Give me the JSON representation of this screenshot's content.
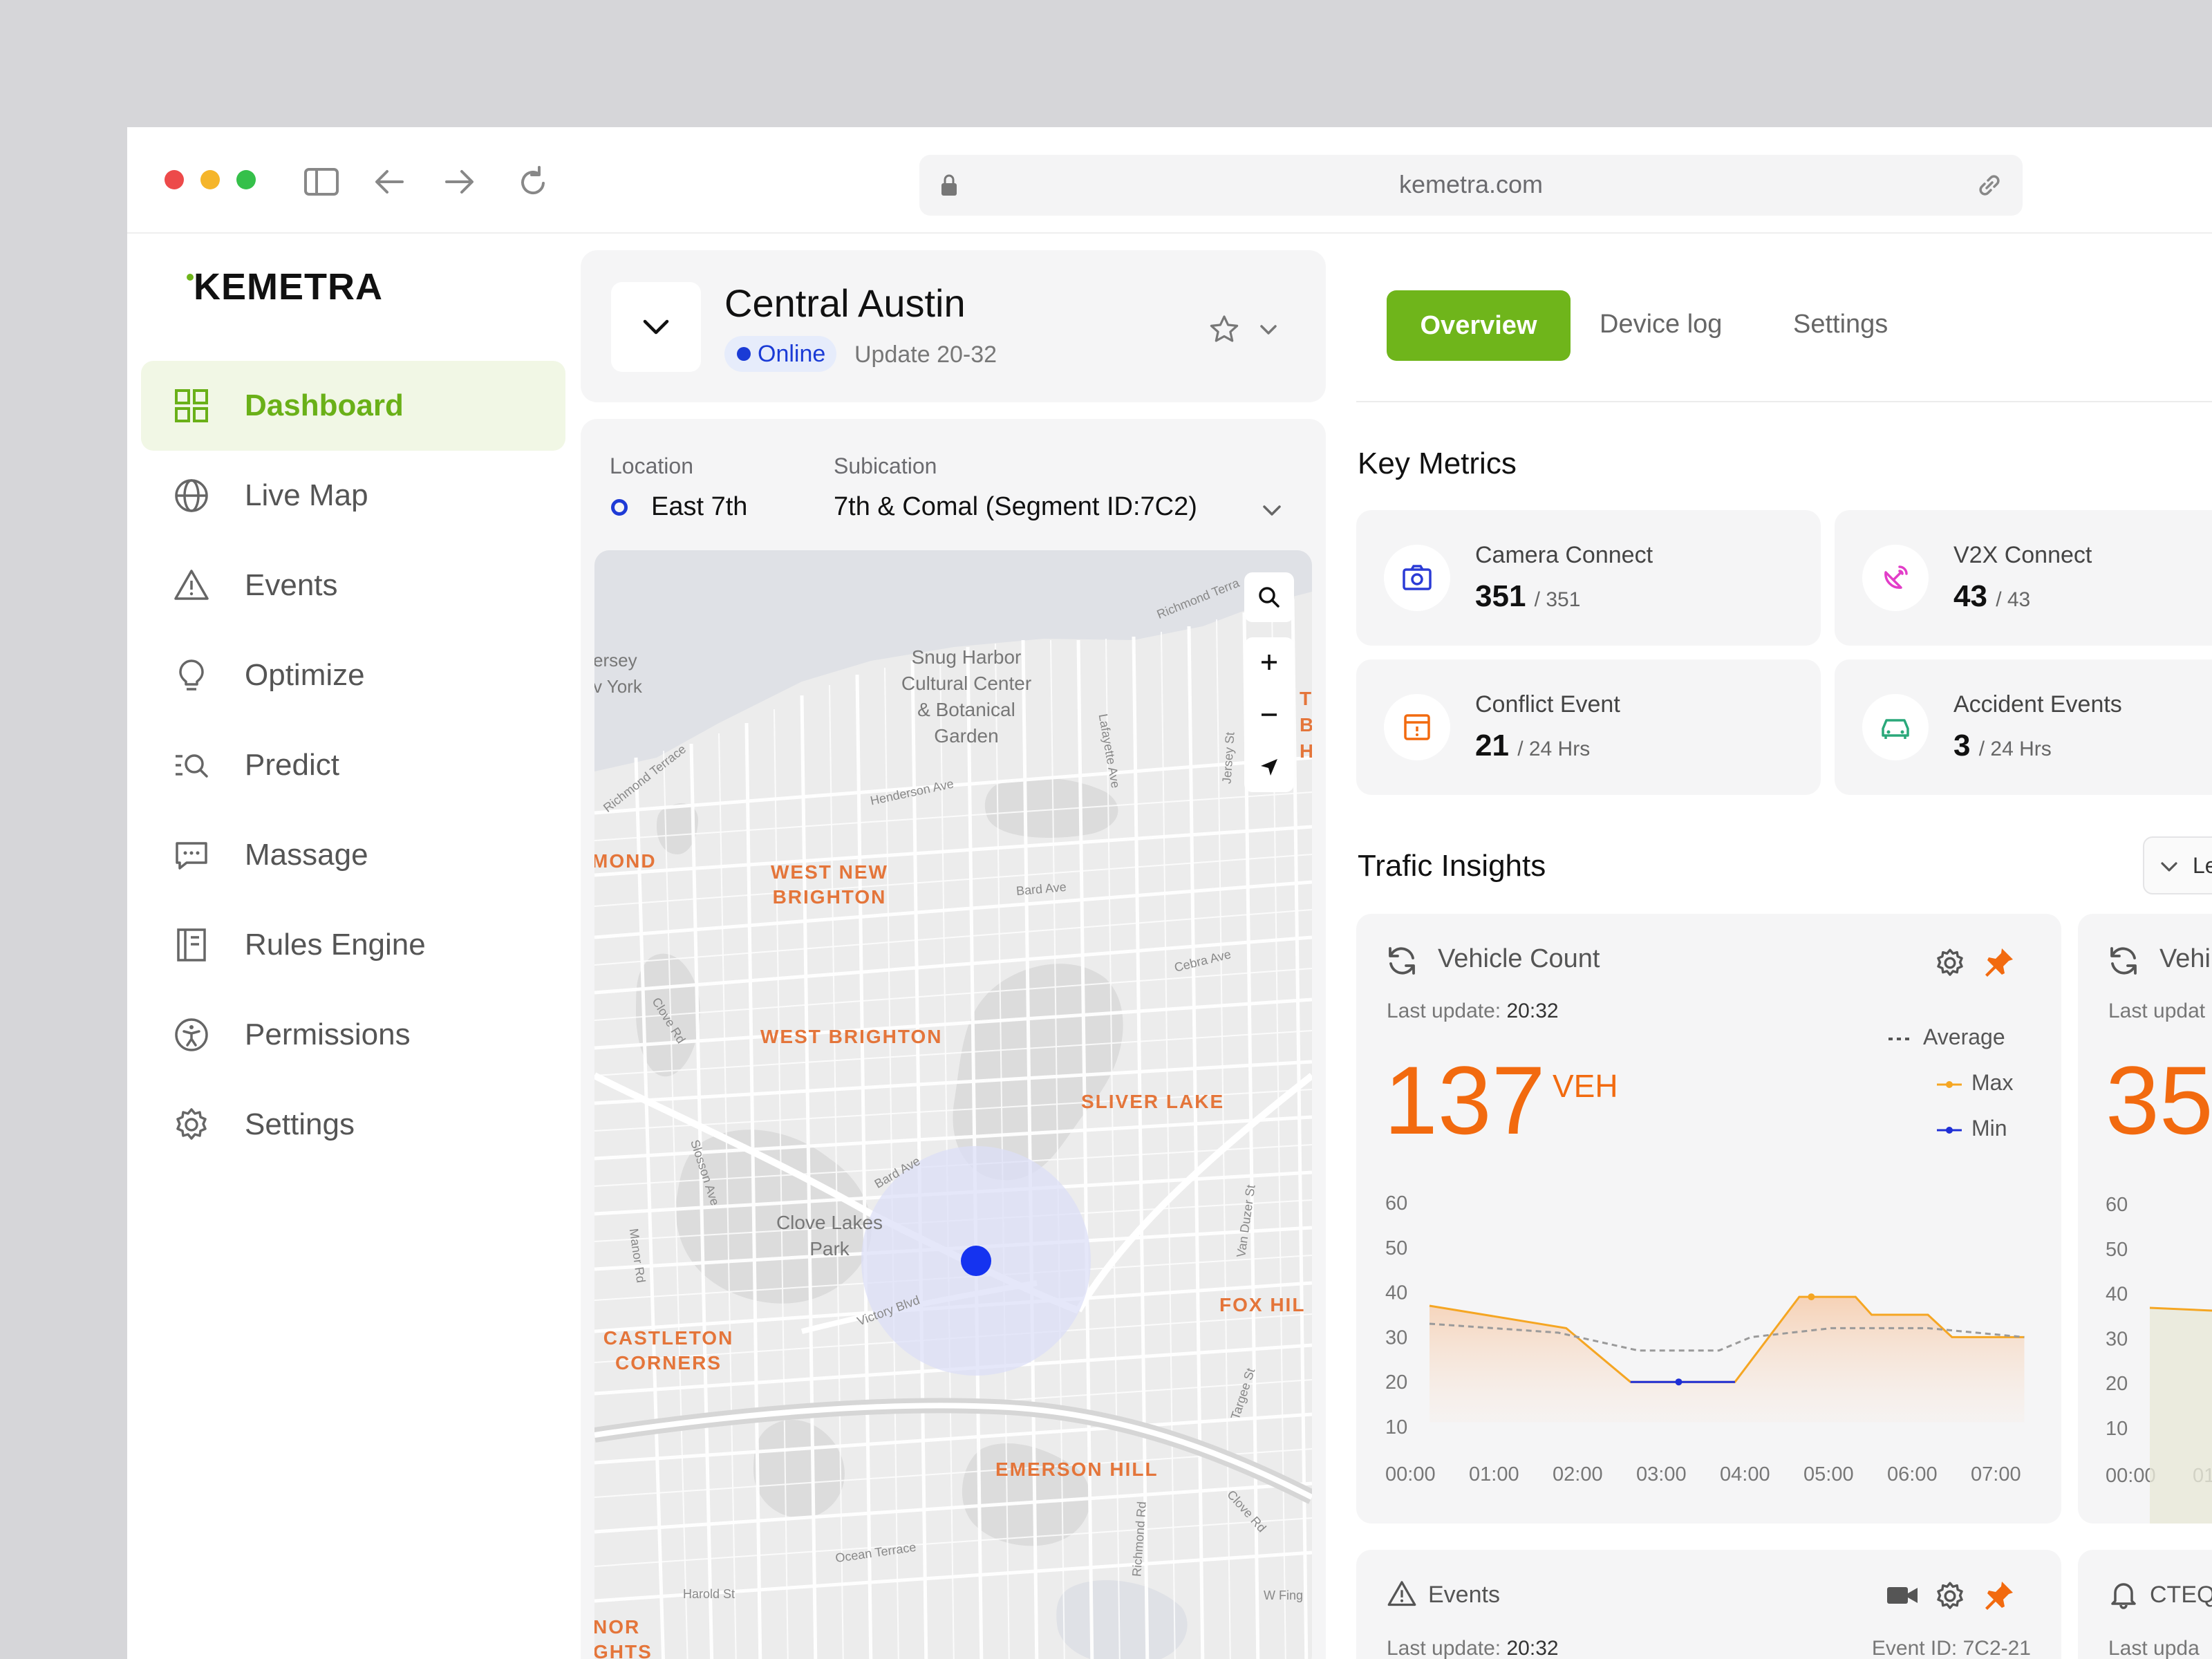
{
  "browser": {
    "url": "kemetra.com"
  },
  "logo": "KEMETRA",
  "nav": [
    {
      "label": "Dashboard",
      "icon": "grid-icon",
      "active": true
    },
    {
      "label": "Live Map",
      "icon": "globe-icon"
    },
    {
      "label": "Events",
      "icon": "warning-icon"
    },
    {
      "label": "Optimize",
      "icon": "lightbulb-icon"
    },
    {
      "label": "Predict",
      "icon": "search-list-icon"
    },
    {
      "label": "Massage",
      "icon": "chat-icon"
    },
    {
      "label": "Rules Engine",
      "icon": "book-icon"
    },
    {
      "label": "Permissions",
      "icon": "accessibility-icon"
    },
    {
      "label": "Settings",
      "icon": "gear-icon"
    }
  ],
  "site": {
    "title": "Central Austin",
    "status": "Online",
    "update": "Update 20-32"
  },
  "location": {
    "location_label": "Location",
    "location_value": "East 7th",
    "subication_label": "Subication",
    "subication_value": "7th & Comal (Segment ID:7C2)"
  },
  "map_labels": {
    "snug": [
      "Snug Harbor",
      "Cultural Center",
      "& Botanical",
      "Garden"
    ],
    "west_new_brighton": [
      "WEST NEW",
      "BRIGHTON"
    ],
    "west_brighton": "WEST BRIGHTON",
    "sliver_lake": "SLIVER LAKE",
    "clove_lakes": [
      "Clove Lakes",
      "Park"
    ],
    "castleton": [
      "CASTLETON",
      "CORNERS"
    ],
    "fox_hill": "FOX HIL",
    "emerson_hill": "EMERSON HILL",
    "mond": "MOND",
    "jersey": [
      "ersey",
      "v York"
    ],
    "nor": [
      "NOR",
      "GHTS"
    ],
    "streets": [
      "Richmond Terrace",
      "Henderson Ave",
      "Lafayette Ave",
      "Jersey St",
      "Bard Ave",
      "Cebra Ave",
      "Clove Rd",
      "Slosson Ave",
      "Bard Ave",
      "Victory Blvd",
      "Manor Rd",
      "Van Duzer St",
      "Targee St",
      "Richmond Rd",
      "Ocean Terrace",
      "Harold St",
      "Clove Rd",
      "Richmond Terra",
      "W Fing"
    ],
    "edge_letters": [
      "T",
      "BI",
      "H"
    ]
  },
  "tabs": {
    "overview": "Overview",
    "device_log": "Device log",
    "settings": "Settings"
  },
  "key_metrics": {
    "title": "Key Metrics",
    "items": [
      {
        "label": "Camera Connect",
        "value": "351",
        "sub": "/ 351",
        "icon": "camera-icon",
        "color": "#2b3bd6"
      },
      {
        "label": "V2X Connect",
        "value": "43",
        "sub": "/ 43",
        "icon": "satellite-icon",
        "color": "#e23dc8"
      },
      {
        "label": "Conflict Event",
        "value": "21",
        "sub": "/ 24 Hrs",
        "icon": "calendar-alert-icon",
        "color": "#f26a0f"
      },
      {
        "label": "Accident Events",
        "value": "3",
        "sub": "/ 24 Hrs",
        "icon": "car-icon",
        "color": "#2aa87a"
      }
    ]
  },
  "insights": {
    "title": "Trafic Insights",
    "dropdown_text": "Le",
    "vehicle_count": {
      "title": "Vehicle Count",
      "last_update_label": "Last update:",
      "last_update_value": "20:32",
      "value": "137",
      "unit": "VEH",
      "legend": [
        "Average",
        "Max",
        "Min"
      ]
    },
    "second_card": {
      "title": "Vehi",
      "last_update": "Last updat",
      "value": "35"
    },
    "events_card": {
      "title": "Events",
      "last_update_label": "Last update:",
      "last_update_value": "20:32",
      "event_id": "Event ID: 7C2-21"
    },
    "cteq_card": {
      "title": "CTEQ",
      "last_update": "Last upda"
    }
  },
  "chart_data": {
    "type": "line",
    "x": [
      "00:00",
      "01:00",
      "02:00",
      "03:00",
      "04:00",
      "05:00",
      "06:00",
      "07:00"
    ],
    "ylim": [
      10,
      60
    ],
    "yticks": [
      60,
      50,
      40,
      30,
      20,
      10
    ],
    "series": [
      {
        "name": "Max",
        "color": "#f5a623",
        "points": [
          [
            0,
            37
          ],
          [
            1.7,
            32
          ],
          [
            2.5,
            20
          ],
          [
            3.8,
            20
          ],
          [
            4.6,
            39
          ],
          [
            5.3,
            39
          ],
          [
            5.5,
            35
          ],
          [
            6.2,
            35
          ],
          [
            6.5,
            30
          ],
          [
            7.4,
            30
          ]
        ]
      },
      {
        "name": "Average",
        "color": "#9a9a9a",
        "points": [
          [
            0,
            33
          ],
          [
            1.6,
            31
          ],
          [
            2.6,
            27
          ],
          [
            3.6,
            27
          ],
          [
            4.0,
            30
          ],
          [
            5.0,
            32
          ],
          [
            6.2,
            32
          ],
          [
            7.4,
            30
          ]
        ]
      },
      {
        "name": "Min",
        "color": "#1f2fd6",
        "points": [
          [
            2.5,
            20
          ],
          [
            3.8,
            20
          ]
        ]
      }
    ],
    "max_marker": [
      4.75,
      39
    ],
    "min_marker": [
      3.1,
      20
    ],
    "second_chart_x": [
      "00:00",
      "01"
    ],
    "second_chart_yticks": [
      60,
      50,
      40,
      30,
      20,
      10
    ]
  }
}
